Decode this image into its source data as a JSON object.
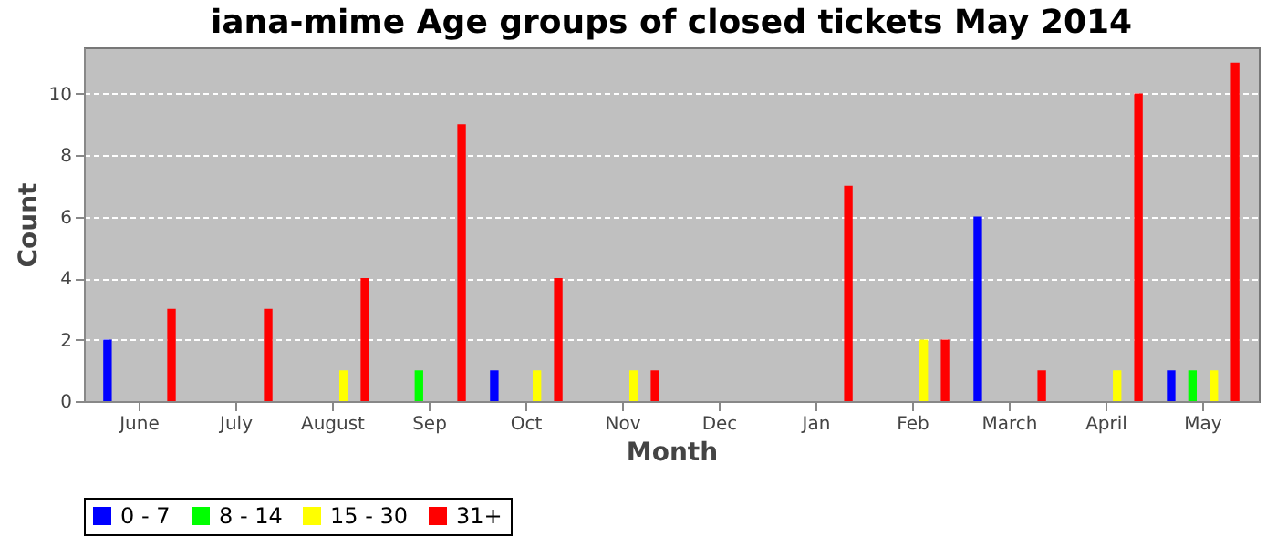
{
  "chart_data": {
    "type": "bar",
    "title": "iana-mime Age groups of closed tickets May 2014",
    "xlabel": "Month",
    "ylabel": "Count",
    "categories": [
      "June",
      "July",
      "August",
      "Sep",
      "Oct",
      "Nov",
      "Dec",
      "Jan",
      "Feb",
      "March",
      "April",
      "May"
    ],
    "series": [
      {
        "name": "0 - 7",
        "color": "#0000ff",
        "values": [
          2,
          0,
          0,
          0,
          1,
          0,
          0,
          0,
          0,
          6,
          0,
          1
        ]
      },
      {
        "name": "8 - 14",
        "color": "#00ff00",
        "values": [
          0,
          0,
          0,
          1,
          0,
          0,
          0,
          0,
          0,
          0,
          0,
          1
        ]
      },
      {
        "name": "15 - 30",
        "color": "#ffff00",
        "values": [
          0,
          0,
          1,
          0,
          1,
          1,
          0,
          0,
          2,
          0,
          1,
          1
        ]
      },
      {
        "name": "31+",
        "color": "#ff0000",
        "values": [
          3,
          3,
          4,
          9,
          4,
          1,
          0,
          7,
          2,
          1,
          10,
          11
        ]
      }
    ],
    "ylim": [
      0,
      11.5
    ],
    "yticks": [
      0,
      2,
      4,
      6,
      8,
      10
    ],
    "grid": "y",
    "legend": "bottom"
  }
}
